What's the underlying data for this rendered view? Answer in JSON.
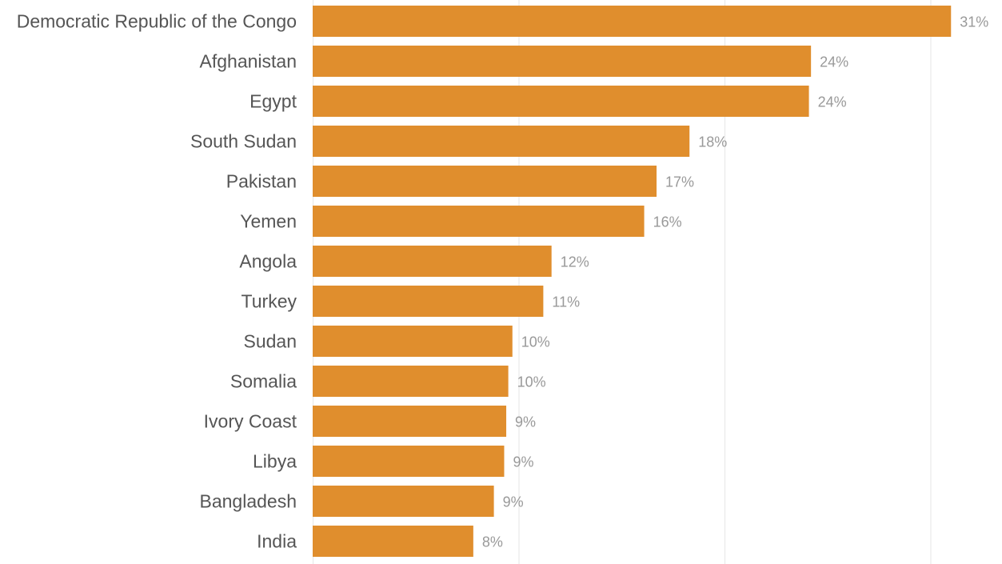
{
  "chart_data": {
    "type": "bar",
    "orientation": "horizontal",
    "categories": [
      "Democratic Republic of the Congo",
      "Afghanistan",
      "Egypt",
      "South Sudan",
      "Pakistan",
      "Yemen",
      "Angola",
      "Turkey",
      "Sudan",
      "Somalia",
      "Ivory Coast",
      "Libya",
      "Bangladesh",
      "India"
    ],
    "values": [
      31,
      24.2,
      24.1,
      18.3,
      16.7,
      16.1,
      11.6,
      11.2,
      9.7,
      9.5,
      9.4,
      9.3,
      8.8,
      7.8
    ],
    "value_labels": [
      "31%",
      "24%",
      "24%",
      "18%",
      "17%",
      "16%",
      "12%",
      "11%",
      "10%",
      "10%",
      "9%",
      "9%",
      "9%",
      "8%"
    ],
    "title": "",
    "xlabel": "",
    "ylabel": "",
    "xlim": [
      0,
      31.5
    ],
    "gridlines_at": [
      0,
      10,
      20,
      30
    ],
    "grid": true,
    "legend": "none",
    "bar_color": "#e08e2d"
  }
}
